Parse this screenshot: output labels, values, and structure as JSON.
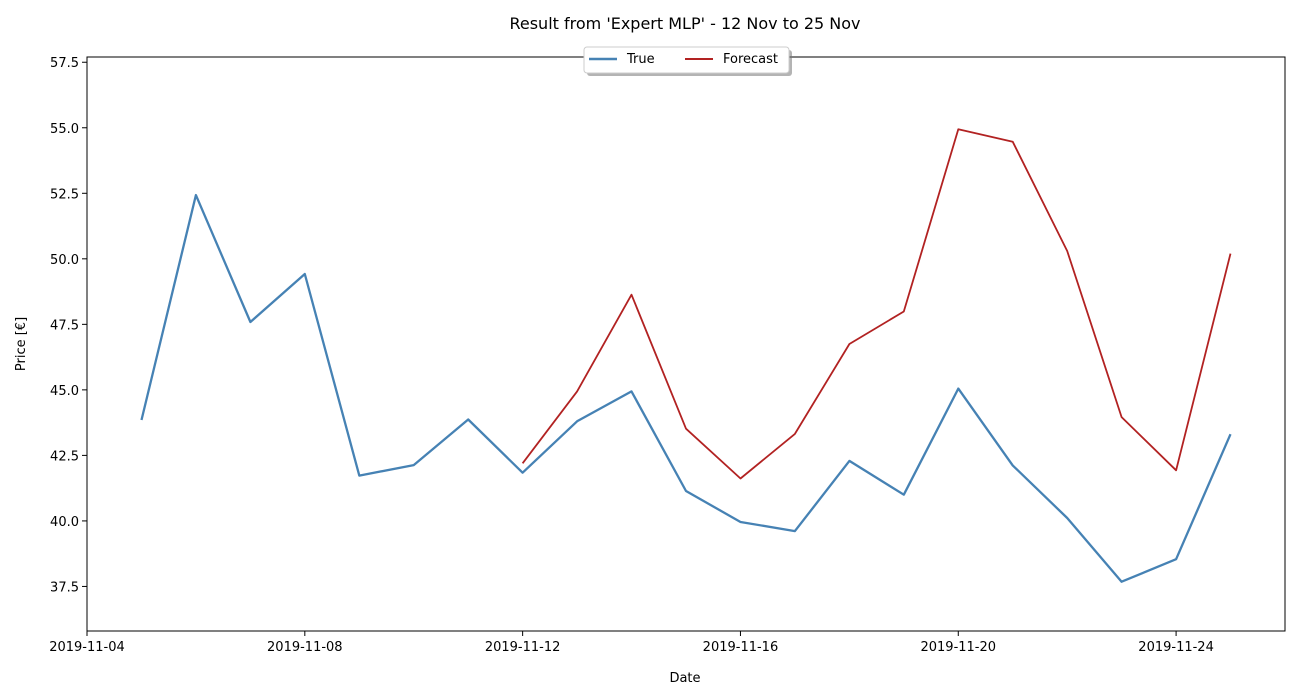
{
  "chart_data": {
    "type": "line",
    "title": "Result from 'Expert MLP' - 12 Nov to 25 Nov",
    "xlabel": "Date",
    "ylabel": "Price [€]",
    "xlim": [
      "2019-11-04",
      "2019-11-26"
    ],
    "ylim": [
      35.8,
      57.7
    ],
    "x_ticks": [
      "2019-11-04",
      "2019-11-08",
      "2019-11-12",
      "2019-11-16",
      "2019-11-20",
      "2019-11-24"
    ],
    "y_ticks": [
      "37.5",
      "40.0",
      "42.5",
      "45.0",
      "47.5",
      "50.0",
      "52.5",
      "55.0",
      "57.5"
    ],
    "grid": false,
    "legend_position": "top-center",
    "series": [
      {
        "name": "True",
        "color": "#4682b4",
        "x": [
          "2019-11-05",
          "2019-11-06",
          "2019-11-07",
          "2019-11-08",
          "2019-11-09",
          "2019-11-10",
          "2019-11-11",
          "2019-11-12",
          "2019-11-13",
          "2019-11-14",
          "2019-11-15",
          "2019-11-16",
          "2019-11-17",
          "2019-11-18",
          "2019-11-19",
          "2019-11-20",
          "2019-11-21",
          "2019-11-22",
          "2019-11-23",
          "2019-11-24",
          "2019-11-25"
        ],
        "values": [
          43.85,
          52.43,
          47.59,
          49.42,
          41.73,
          42.13,
          43.87,
          41.84,
          43.8,
          44.94,
          41.14,
          39.96,
          39.61,
          42.29,
          41.0,
          45.05,
          42.12,
          40.11,
          37.68,
          38.54,
          43.31
        ]
      },
      {
        "name": "Forecast",
        "color": "#b22222",
        "x": [
          "2019-11-12",
          "2019-11-13",
          "2019-11-14",
          "2019-11-15",
          "2019-11-16",
          "2019-11-17",
          "2019-11-18",
          "2019-11-19",
          "2019-11-20",
          "2019-11-21",
          "2019-11-22",
          "2019-11-23",
          "2019-11-24",
          "2019-11-25"
        ],
        "values": [
          42.2,
          44.94,
          48.63,
          43.52,
          41.62,
          43.32,
          46.75,
          47.99,
          54.94,
          54.47,
          50.3,
          43.96,
          41.93,
          50.2
        ]
      }
    ]
  }
}
